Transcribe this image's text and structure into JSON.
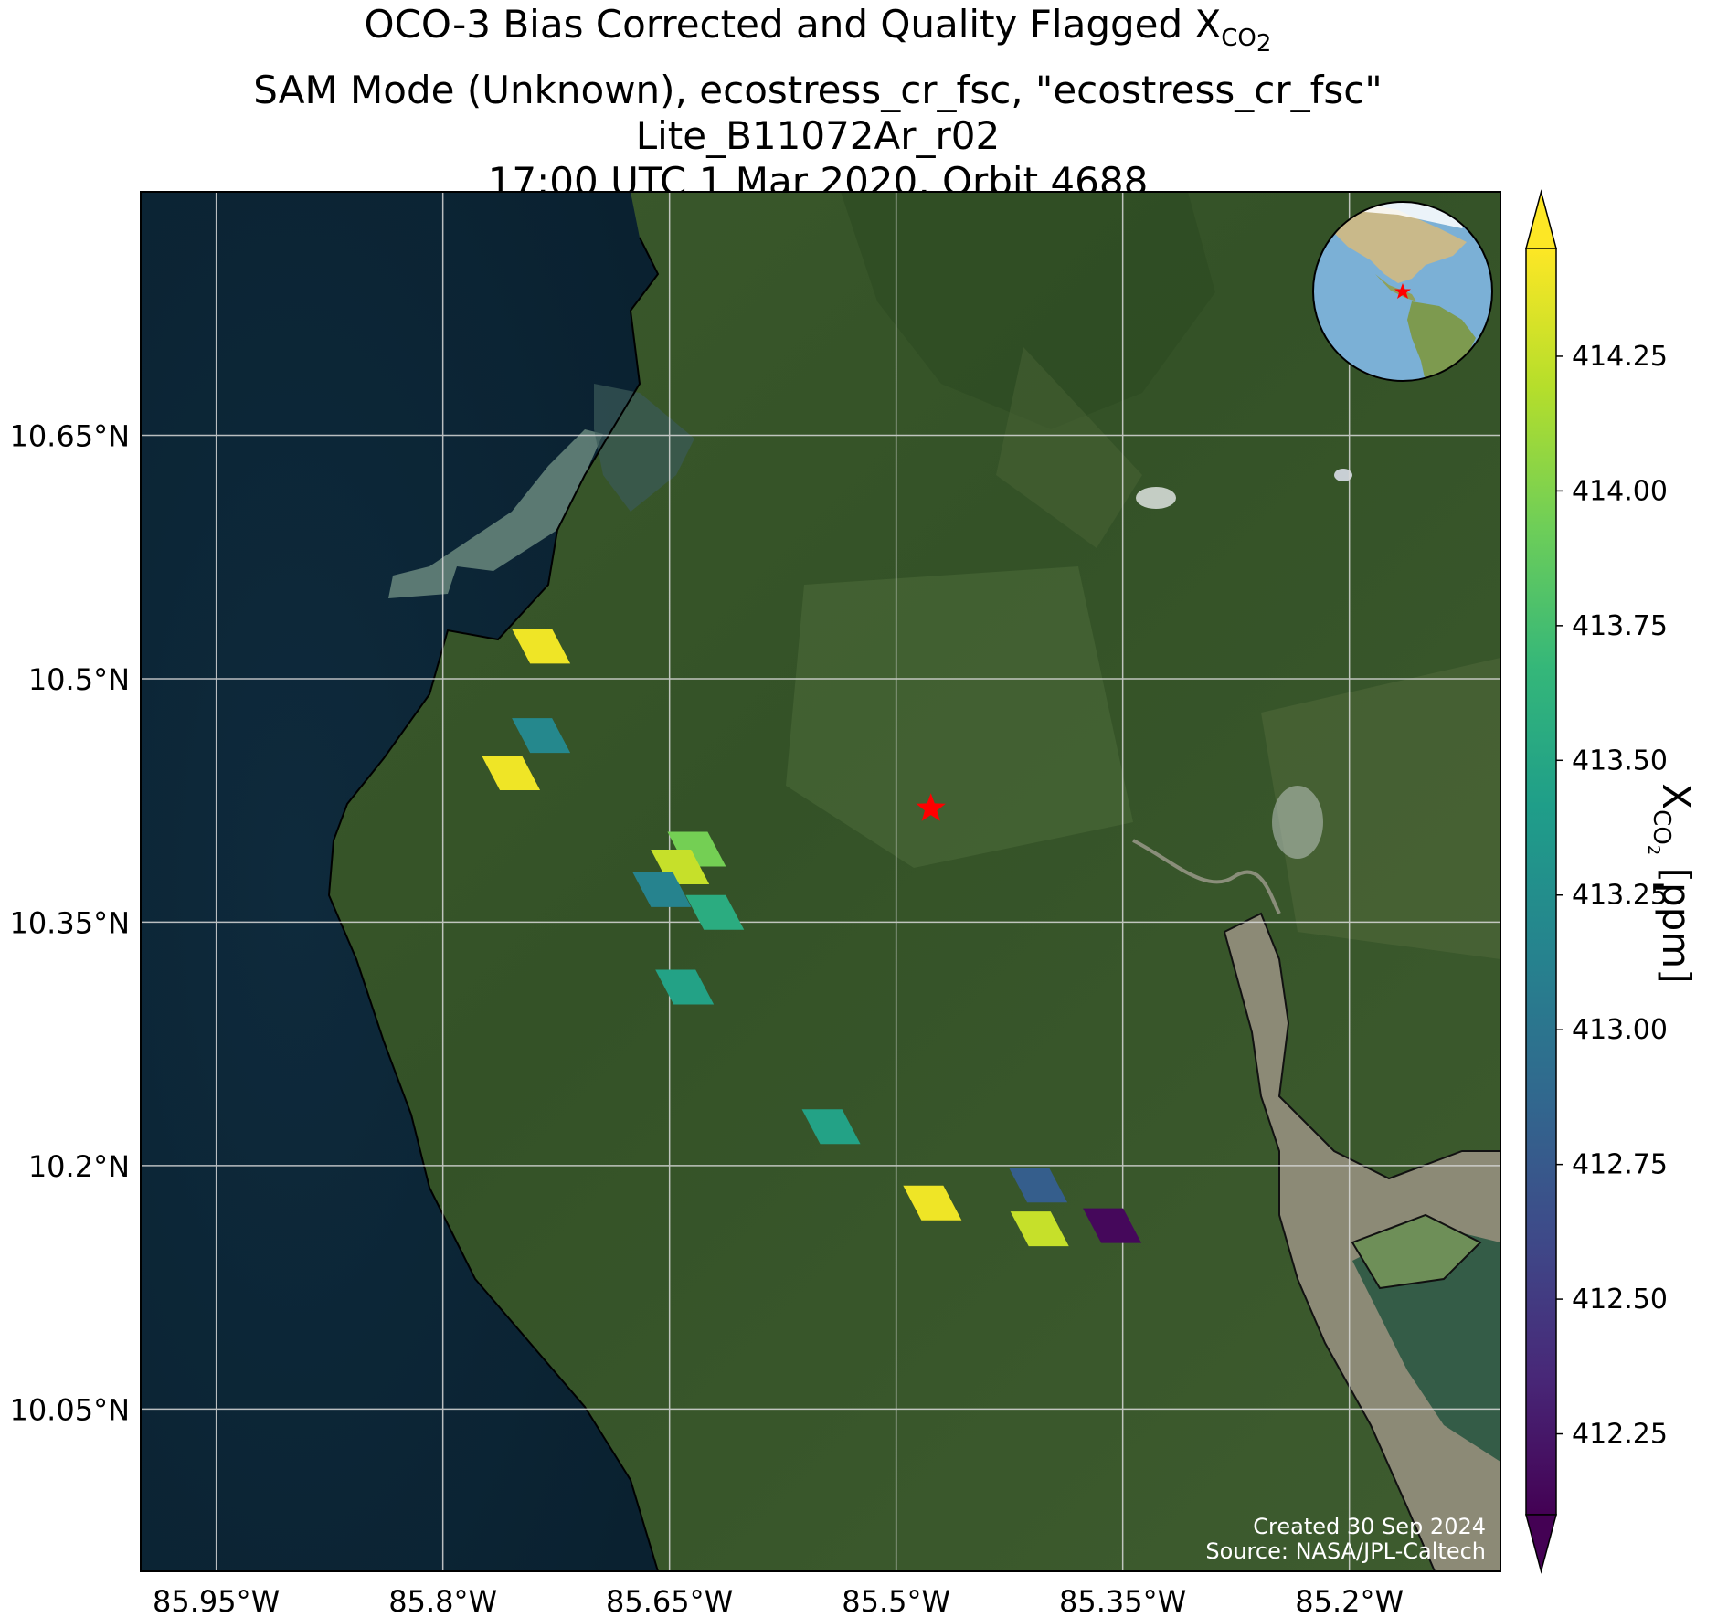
{
  "title": {
    "line1_main": "OCO-3 Bias Corrected and Quality Flagged X",
    "line1_sub": "CO",
    "line1_sub2": "2",
    "line2": "SAM Mode (Unknown), ecostress_cr_fsc, \"ecostress_cr_fsc\"",
    "line3": "Lite_B11072Ar_r02",
    "line4": "17:00 UTC 1 Mar 2020, Orbit 4688"
  },
  "map": {
    "lon_ticks": [
      "85.95°W",
      "85.8°W",
      "85.65°W",
      "85.5°W",
      "85.35°W",
      "85.2°W"
    ],
    "lat_ticks": [
      "10.65°N",
      "10.5°N",
      "10.35°N",
      "10.2°N",
      "10.05°N"
    ],
    "lon_tick_values": [
      -85.95,
      -85.8,
      -85.65,
      -85.5,
      -85.35,
      -85.2
    ],
    "lat_tick_values": [
      10.65,
      10.5,
      10.35,
      10.2,
      10.05
    ],
    "extent": {
      "lon_min": -86.0,
      "lon_max": -85.1,
      "lat_min": 9.95,
      "lat_max": 10.8
    },
    "target": {
      "name": "ecostress_cr_fsc",
      "lon": -85.477,
      "lat": 10.42,
      "marker": "red-star"
    },
    "credit_line1": "Created 30 Sep 2024",
    "credit_line2": "Source: NASA/JPL-Caltech"
  },
  "colorbar": {
    "label_main": "X",
    "label_sub": "CO",
    "label_sub2": "2",
    "label_unit": " [ppm]",
    "colormap": "viridis",
    "vmin": 412.1,
    "vmax": 414.45,
    "ticks": [
      "412.25",
      "412.50",
      "412.75",
      "413.00",
      "413.25",
      "413.50",
      "413.75",
      "414.00",
      "414.25"
    ],
    "tick_values": [
      412.25,
      412.5,
      412.75,
      413.0,
      413.25,
      413.5,
      413.75,
      414.0,
      414.25
    ],
    "extend": "both"
  },
  "chart_data": {
    "type": "scatter",
    "value_unit": "ppm",
    "soundings": [
      {
        "lon": -85.735,
        "lat": 10.52,
        "xco2": 414.4
      },
      {
        "lon": -85.735,
        "lat": 10.465,
        "xco2": 413.2
      },
      {
        "lon": -85.755,
        "lat": 10.442,
        "xco2": 414.4
      },
      {
        "lon": -85.632,
        "lat": 10.395,
        "xco2": 413.95
      },
      {
        "lon": -85.643,
        "lat": 10.384,
        "xco2": 414.25
      },
      {
        "lon": -85.655,
        "lat": 10.37,
        "xco2": 413.15
      },
      {
        "lon": -85.62,
        "lat": 10.356,
        "xco2": 413.55
      },
      {
        "lon": -85.64,
        "lat": 10.31,
        "xco2": 413.45
      },
      {
        "lon": -85.543,
        "lat": 10.224,
        "xco2": 413.45
      },
      {
        "lon": -85.476,
        "lat": 10.177,
        "xco2": 414.4
      },
      {
        "lon": -85.406,
        "lat": 10.188,
        "xco2": 412.8
      },
      {
        "lon": -85.405,
        "lat": 10.161,
        "xco2": 414.25
      },
      {
        "lon": -85.357,
        "lat": 10.163,
        "xco2": 412.15
      }
    ]
  }
}
